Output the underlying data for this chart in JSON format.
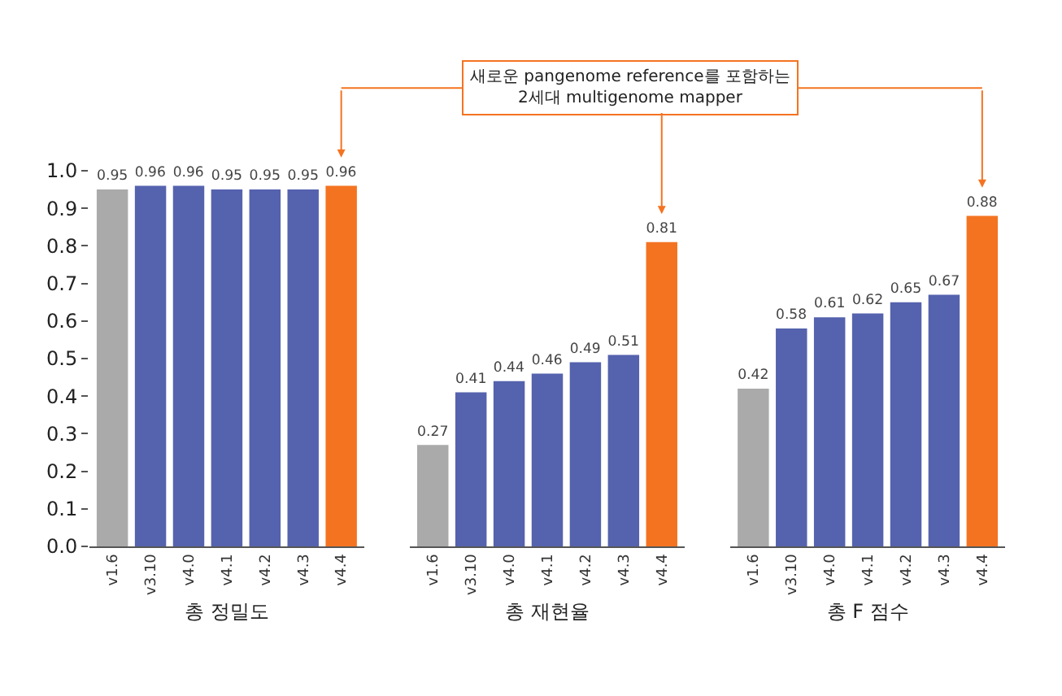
{
  "chart_data": [
    {
      "type": "bar",
      "xlabel": "총 정밀도",
      "categories": [
        "v1.6",
        "v3.10",
        "v4.0",
        "v4.1",
        "v4.2",
        "v4.3",
        "v4.4"
      ],
      "values": [
        0.95,
        0.96,
        0.96,
        0.95,
        0.95,
        0.95,
        0.96
      ],
      "colors": [
        "#aaaaaa",
        "#5562ae",
        "#5562ae",
        "#5562ae",
        "#5562ae",
        "#5562ae",
        "#f47321"
      ],
      "ylim": [
        0,
        1.0
      ],
      "yticks": [
        {
          "value": 0,
          "label": "0.0"
        },
        0.1,
        0.2,
        0.3,
        0.4,
        0.5,
        0.6,
        0.7,
        0.8,
        0.9,
        {
          "value": 1,
          "label": "1.0"
        }
      ],
      "data_labels": true,
      "annotations": [
        "새로운 pangenome reference를 포함하는\n2세대 multigenome mapper"
      ]
    },
    {
      "type": "bar",
      "xlabel": "총 재현율",
      "categories": [
        "v1.6",
        "v3.10",
        "v4.0",
        "v4.1",
        "v4.2",
        "v4.3",
        "v4.4"
      ],
      "values": [
        0.27,
        0.41,
        0.44,
        0.46,
        0.49,
        0.51,
        0.81
      ],
      "colors": [
        "#aaaaaa",
        "#5562ae",
        "#5562ae",
        "#5562ae",
        "#5562ae",
        "#5562ae",
        "#f47321"
      ],
      "ylim": [
        0,
        1.0
      ],
      "tick_labels": "x",
      "data_labels": true
    },
    {
      "type": "bar",
      "xlabel": "총 F 점수",
      "categories": [
        "v1.6",
        "v3.10",
        "v4.0",
        "v4.1",
        "v4.2",
        "v4.3",
        "v4.4"
      ],
      "values": [
        0.42,
        0.58,
        0.61,
        0.62,
        0.65,
        0.67,
        0.88
      ],
      "colors": [
        "#aaaaaa",
        "#5562ae",
        "#5562ae",
        "#5562ae",
        "#5562ae",
        "#5562ae",
        "#f47321"
      ],
      "ylim": [
        0,
        1.0
      ],
      "tick_labels": "x",
      "data_labels": true
    }
  ]
}
